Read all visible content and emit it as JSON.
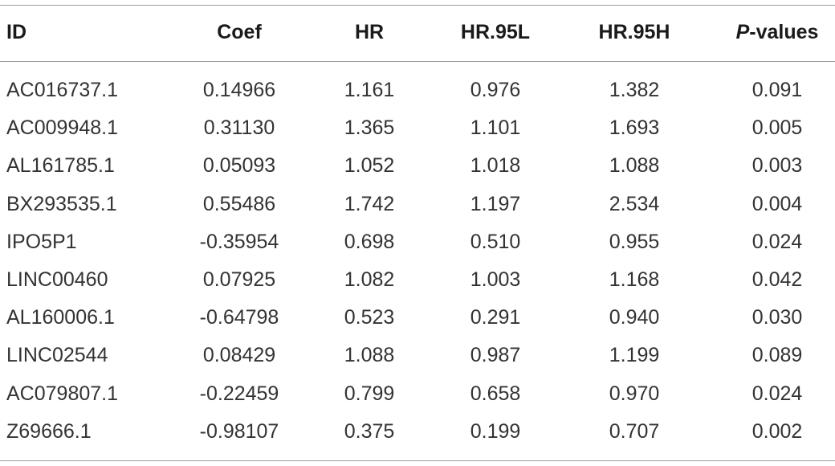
{
  "table": {
    "headers": {
      "id": "ID",
      "coef": "Coef",
      "hr": "HR",
      "hr95l": "HR.95L",
      "hr95h": "HR.95H",
      "p_italic": "P",
      "p_rest": "-values"
    },
    "rows": [
      {
        "id": "AC016737.1",
        "coef": "0.14966",
        "hr": "1.161",
        "hr95l": "0.976",
        "hr95h": "1.382",
        "p": "0.091"
      },
      {
        "id": "AC009948.1",
        "coef": "0.31130",
        "hr": "1.365",
        "hr95l": "1.101",
        "hr95h": "1.693",
        "p": "0.005"
      },
      {
        "id": "AL161785.1",
        "coef": "0.05093",
        "hr": "1.052",
        "hr95l": "1.018",
        "hr95h": "1.088",
        "p": "0.003"
      },
      {
        "id": "BX293535.1",
        "coef": "0.55486",
        "hr": "1.742",
        "hr95l": "1.197",
        "hr95h": "2.534",
        "p": "0.004"
      },
      {
        "id": "IPO5P1",
        "coef": "-0.35954",
        "hr": "0.698",
        "hr95l": "0.510",
        "hr95h": "0.955",
        "p": "0.024"
      },
      {
        "id": "LINC00460",
        "coef": "0.07925",
        "hr": "1.082",
        "hr95l": "1.003",
        "hr95h": "1.168",
        "p": "0.042"
      },
      {
        "id": "AL160006.1",
        "coef": "-0.64798",
        "hr": "0.523",
        "hr95l": "0.291",
        "hr95h": "0.940",
        "p": "0.030"
      },
      {
        "id": "LINC02544",
        "coef": "0.08429",
        "hr": "1.088",
        "hr95l": "0.987",
        "hr95h": "1.199",
        "p": "0.089"
      },
      {
        "id": "AC079807.1",
        "coef": "-0.22459",
        "hr": "0.799",
        "hr95l": "0.658",
        "hr95h": "0.970",
        "p": "0.024"
      },
      {
        "id": "Z69666.1",
        "coef": "-0.98107",
        "hr": "0.375",
        "hr95l": "0.199",
        "hr95h": "0.707",
        "p": "0.002"
      }
    ]
  }
}
